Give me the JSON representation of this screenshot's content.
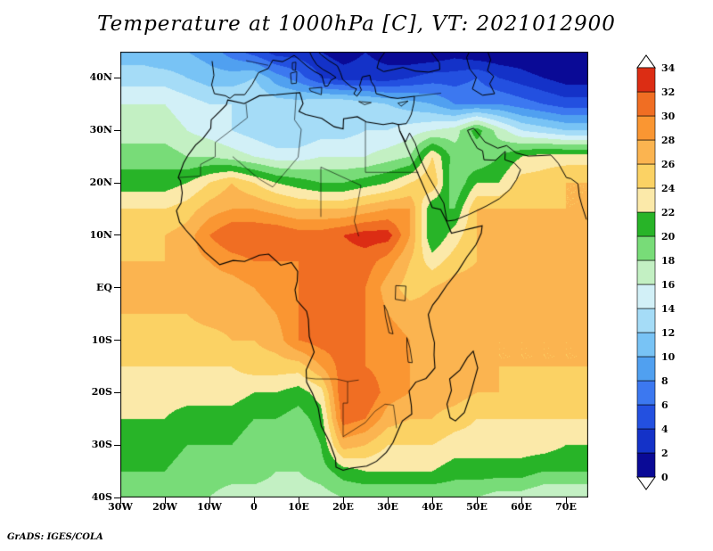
{
  "title": "Temperature at 1000hPa [C], VT: 2021012900",
  "credit": "GrADS: IGES/COLA",
  "axes": {
    "lat_tick_labels": [
      "40N",
      "30N",
      "20N",
      "10N",
      "EQ",
      "10S",
      "20S",
      "30S",
      "40S"
    ],
    "lat_tick_values": [
      40,
      30,
      20,
      10,
      0,
      -10,
      -20,
      -30,
      -40
    ],
    "lon_tick_labels": [
      "30W",
      "20W",
      "10W",
      "0",
      "10E",
      "20E",
      "30E",
      "40E",
      "50E",
      "60E",
      "70E"
    ],
    "lon_tick_values": [
      -30,
      -20,
      -10,
      0,
      10,
      20,
      30,
      40,
      50,
      60,
      70
    ]
  },
  "colorbar": {
    "tick_labels": [
      "0",
      "2",
      "4",
      "6",
      "8",
      "10",
      "12",
      "14",
      "16",
      "18",
      "20",
      "22",
      "24",
      "26",
      "28",
      "30",
      "32",
      "34"
    ],
    "segment_colors": [
      "#0a0a96",
      "#1432c8",
      "#2350e0",
      "#3c78f0",
      "#50a0f0",
      "#78c3f5",
      "#a5dcf7",
      "#d2f0f7",
      "#c3f0c3",
      "#78dc78",
      "#28b428",
      "#fbe9a9",
      "#fbd264",
      "#fbb450",
      "#fa9632",
      "#f06e23",
      "#dc2d14"
    ],
    "end_cap_color": "#ffffff"
  },
  "chart_data": {
    "type": "heatmap",
    "title": "Temperature at 1000hPa [C], VT: 2021012900",
    "variable": "Temperature",
    "level": "1000hPa",
    "units": "C",
    "valid_time": "2021012900",
    "contour_interval": 2,
    "scale_min": 0,
    "scale_max": 34,
    "lon_range": [
      -30,
      75
    ],
    "lat_range": [
      -40,
      45
    ],
    "grid_lon": [
      -30,
      -25,
      -20,
      -15,
      -10,
      -5,
      0,
      5,
      10,
      15,
      20,
      25,
      30,
      35,
      40,
      45,
      50,
      55,
      60,
      65,
      70,
      75
    ],
    "grid_lat": [
      45,
      40,
      35,
      30,
      25,
      20,
      15,
      10,
      5,
      0,
      -5,
      -10,
      -15,
      -20,
      -25,
      -30,
      -35,
      -40
    ],
    "values_c": [
      [
        11,
        11,
        10,
        10,
        9,
        7,
        5,
        3,
        3,
        2,
        1,
        2,
        1,
        0,
        0,
        1,
        0,
        0,
        0,
        -1,
        -1,
        -2
      ],
      [
        13,
        13,
        13,
        12,
        11,
        11,
        12,
        9,
        7,
        4,
        3,
        3,
        3,
        4,
        5,
        5,
        6,
        4,
        3,
        2,
        1,
        1
      ],
      [
        16,
        16,
        16,
        15,
        14,
        14,
        14,
        13,
        13,
        14,
        14,
        13,
        12,
        11,
        10,
        8,
        8,
        8,
        7,
        6,
        5,
        5
      ],
      [
        17,
        17,
        17,
        16,
        15,
        14,
        13,
        12,
        12,
        13,
        13,
        14,
        14,
        15,
        16,
        17,
        21,
        17,
        14,
        13,
        12,
        12
      ],
      [
        19,
        19,
        19,
        18,
        18,
        17,
        16,
        15,
        15,
        16,
        16,
        16,
        17,
        18,
        24,
        19,
        18,
        20,
        22,
        23,
        23,
        23
      ],
      [
        21,
        21,
        21,
        22,
        24,
        26,
        24,
        22,
        21,
        20,
        20,
        21,
        22,
        24,
        26,
        18,
        22,
        22,
        25,
        25,
        26,
        26
      ],
      [
        24,
        24,
        24,
        25,
        27,
        28,
        28,
        27,
        26,
        26,
        26,
        27,
        28,
        28,
        20,
        20,
        26,
        26,
        26,
        26,
        26,
        26
      ],
      [
        25,
        25,
        26,
        27,
        30,
        32,
        32,
        32,
        31,
        31,
        32,
        33,
        33,
        28,
        20,
        23,
        26,
        27,
        27,
        27,
        27,
        27
      ],
      [
        26,
        26,
        26,
        27,
        28,
        29,
        30,
        30,
        30,
        31,
        31,
        31,
        29,
        26,
        23,
        25,
        26,
        27,
        27,
        27,
        27,
        27
      ],
      [
        27,
        27,
        27,
        27,
        27,
        27,
        28,
        29,
        30,
        30,
        31,
        30,
        27,
        25,
        26,
        27,
        27,
        27,
        27,
        27,
        27,
        27
      ],
      [
        26,
        26,
        26,
        26,
        27,
        27,
        27,
        28,
        30,
        31,
        31,
        30,
        28,
        27,
        27,
        27,
        27,
        27,
        27,
        27,
        27,
        27
      ],
      [
        25,
        25,
        25,
        25,
        25,
        26,
        26,
        27,
        30,
        31,
        31,
        30,
        29,
        28,
        27,
        27,
        27,
        26,
        26,
        26,
        26,
        26
      ],
      [
        24,
        24,
        24,
        24,
        24,
        24,
        25,
        25,
        25,
        28,
        31,
        30,
        29,
        28,
        27,
        27,
        27,
        26,
        26,
        26,
        26,
        26
      ],
      [
        23,
        23,
        23,
        23,
        23,
        23,
        22,
        22,
        21,
        23,
        32,
        32,
        29,
        28,
        27,
        27,
        26,
        26,
        25,
        25,
        25,
        25
      ],
      [
        22,
        22,
        22,
        21,
        21,
        21,
        20,
        20,
        19,
        21,
        31,
        30,
        27,
        26,
        26,
        25,
        24,
        24,
        24,
        24,
        24,
        24
      ],
      [
        21,
        21,
        21,
        20,
        20,
        20,
        19,
        19,
        18,
        20,
        27,
        26,
        24,
        24,
        24,
        23,
        23,
        23,
        23,
        23,
        22,
        22
      ],
      [
        20,
        20,
        20,
        19,
        19,
        19,
        19,
        18,
        18,
        19,
        21,
        22,
        22,
        22,
        22,
        21,
        21,
        21,
        21,
        20,
        20,
        20
      ],
      [
        18,
        18,
        18,
        18,
        18,
        17,
        17,
        17,
        17,
        17,
        18,
        18,
        18,
        18,
        18,
        18,
        18,
        17,
        17,
        16,
        16,
        16
      ]
    ]
  }
}
